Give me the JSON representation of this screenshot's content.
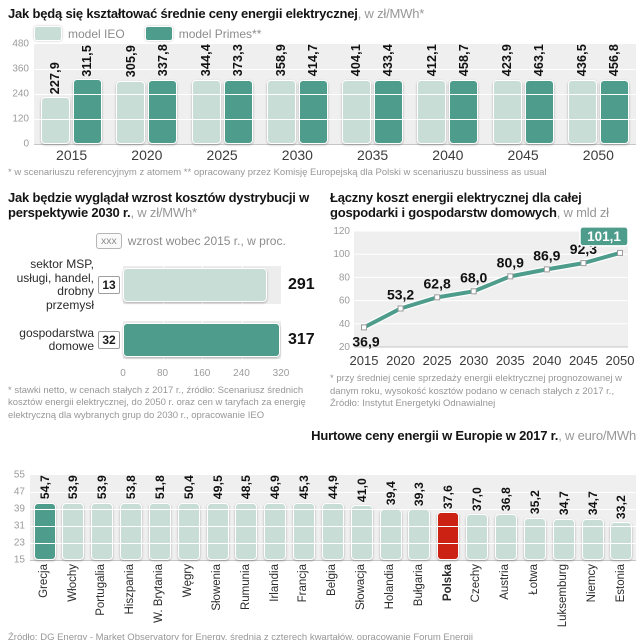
{
  "colors": {
    "model_ieo_light_teal": "#c8ddd5",
    "model_primes_dark_teal": "#4e9c8b",
    "poland_highlight_red": "#cb2214",
    "plot_background": "#efefef",
    "gridline": "#ffffff",
    "muted_text": "#979797"
  },
  "chart_data": [
    {
      "id": "avg_prices",
      "type": "bar",
      "title": "Jak będą się kształtować średnie ceny energii elektrycznej",
      "subtitle": ", w zł/MWh*",
      "legend": [
        "model IEO",
        "model Primes**"
      ],
      "legend_position": "top-left",
      "categories": [
        "2015",
        "2020",
        "2025",
        "2030",
        "2035",
        "2040",
        "2045",
        "2050"
      ],
      "series": [
        {
          "name": "model IEO",
          "values": [
            227.9,
            305.9,
            344.4,
            358.9,
            404.1,
            412.1,
            423.9,
            436.5
          ],
          "labels": [
            "227,9",
            "305,9",
            "344,4",
            "358,9",
            "404,1",
            "412,1",
            "423,9",
            "436,5"
          ]
        },
        {
          "name": "model Primes**",
          "values": [
            311.5,
            337.8,
            373.3,
            414.7,
            433.4,
            458.7,
            463.1,
            456.8
          ],
          "labels": [
            "311,5",
            "337,8",
            "373,3",
            "414,7",
            "433,4",
            "458,7",
            "463,1",
            "456,8"
          ]
        }
      ],
      "y_ticks": [
        480,
        360,
        240,
        120,
        0
      ],
      "ylim": [
        0,
        480
      ],
      "grid": true,
      "footnote": "* w scenariuszu referencyjnym z atomem ** opracowany przez Komisję Europejską dla Polski w scenariuszu bussiness as usual"
    },
    {
      "id": "distribution_cost_growth",
      "type": "bar",
      "orientation": "horizontal",
      "title": "Jak będzie wyglądał wzrost kosztów dystrybucji w perspektywie 2030 r.",
      "subtitle": ", w zł/MWh*",
      "legend_badge": "xxx",
      "legend_text": "wzrost wobec 2015 r., w proc.",
      "rows": [
        {
          "label_lines": [
            "sektor MSP,",
            "usługi, handel,",
            "drobny przemysł"
          ],
          "growth_badge": "13",
          "value": 291,
          "label": "291",
          "color": "light"
        },
        {
          "label_lines": [
            "gospodarstwa",
            "domowe"
          ],
          "growth_badge": "32",
          "value": 317,
          "label": "317",
          "color": "dark"
        }
      ],
      "x_ticks": [
        0,
        80,
        160,
        240,
        320
      ],
      "xlim": [
        0,
        320
      ],
      "grid": true,
      "footnote": "* stawki netto, w cenach stałych z 2017 r., źródło: Scenariusz średnich kosztów energii elektrycznej, do 2050 r. oraz cen w taryfach za energię elektryczną dla wybranych grup do 2030 r., opracowanie IEO"
    },
    {
      "id": "total_cost",
      "type": "line",
      "title": "Łączny koszt energii elektrycznej dla całej gospodarki i gospodarstw domowych",
      "subtitle": ", w mld zł",
      "categories": [
        "2015",
        "2020",
        "2025",
        "2030",
        "2035",
        "2040",
        "2045",
        "2050"
      ],
      "values": [
        36.9,
        53.2,
        62.8,
        68.0,
        80.9,
        86.9,
        92.3,
        101.1
      ],
      "labels": [
        "36,9",
        "53,2",
        "62,8",
        "68,0",
        "80,9",
        "86,9",
        "92,3",
        "101,1"
      ],
      "highlight_last_label": "101,1",
      "y_ticks": [
        120,
        100,
        80,
        60,
        40,
        20
      ],
      "ylim": [
        20,
        120
      ],
      "grid": true,
      "footnote": "* przy średniej cenie sprzedaży energii elektrycznej prognozowanej w danym roku, wysokość kosztów podano w cenach stałych z 2017 r., Źródło: Instytut Energetyki Odnawialnej"
    },
    {
      "id": "europe_wholesale_prices",
      "type": "bar",
      "title": "Hurtowe ceny energii w Europie w 2017 r.",
      "subtitle": ", w euro/MWh",
      "y_ticks": [
        55,
        47,
        39,
        31,
        23,
        15
      ],
      "ylim": [
        15,
        55
      ],
      "grid": true,
      "bars": [
        {
          "country": "Grecja",
          "value": 54.7,
          "label": "54,7",
          "color": "dark",
          "bold": false
        },
        {
          "country": "Włochy",
          "value": 53.9,
          "label": "53,9",
          "color": "light",
          "bold": false
        },
        {
          "country": "Portugalia",
          "value": 53.9,
          "label": "53,9",
          "color": "light",
          "bold": false
        },
        {
          "country": "Hiszpania",
          "value": 53.8,
          "label": "53,8",
          "color": "light",
          "bold": false
        },
        {
          "country": "W. Brytania",
          "value": 51.8,
          "label": "51,8",
          "color": "light",
          "bold": false
        },
        {
          "country": "Węgry",
          "value": 50.4,
          "label": "50,4",
          "color": "light",
          "bold": false
        },
        {
          "country": "Słowenia",
          "value": 49.5,
          "label": "49,5",
          "color": "light",
          "bold": false
        },
        {
          "country": "Rumunia",
          "value": 48.5,
          "label": "48,5",
          "color": "light",
          "bold": false
        },
        {
          "country": "Irlandia",
          "value": 46.9,
          "label": "46,9",
          "color": "light",
          "bold": false
        },
        {
          "country": "Francja",
          "value": 45.3,
          "label": "45,3",
          "color": "light",
          "bold": false
        },
        {
          "country": "Belgia",
          "value": 44.9,
          "label": "44,9",
          "color": "light",
          "bold": false
        },
        {
          "country": "Słowacja",
          "value": 41.0,
          "label": "41,0",
          "color": "light",
          "bold": false
        },
        {
          "country": "Holandia",
          "value": 39.4,
          "label": "39,4",
          "color": "light",
          "bold": false
        },
        {
          "country": "Bułgaria",
          "value": 39.3,
          "label": "39,3",
          "color": "light",
          "bold": false
        },
        {
          "country": "Polska",
          "value": 37.6,
          "label": "37,6",
          "color": "red",
          "bold": true
        },
        {
          "country": "Czechy",
          "value": 37.0,
          "label": "37,0",
          "color": "light",
          "bold": false
        },
        {
          "country": "Austria",
          "value": 36.8,
          "label": "36,8",
          "color": "light",
          "bold": false
        },
        {
          "country": "Łotwa",
          "value": 35.2,
          "label": "35,2",
          "color": "light",
          "bold": false
        },
        {
          "country": "Luksemburg",
          "value": 34.7,
          "label": "34,7",
          "color": "light",
          "bold": false
        },
        {
          "country": "Niemcy",
          "value": 34.7,
          "label": "34,7",
          "color": "light",
          "bold": false
        },
        {
          "country": "Estonia",
          "value": 33.2,
          "label": "33,2",
          "color": "light",
          "bold": false
        }
      ],
      "source": "Źródło: DG Energy - Market Observatory for Energy, średnia z czterech kwartałów, opracowanie Forum Energii"
    }
  ]
}
